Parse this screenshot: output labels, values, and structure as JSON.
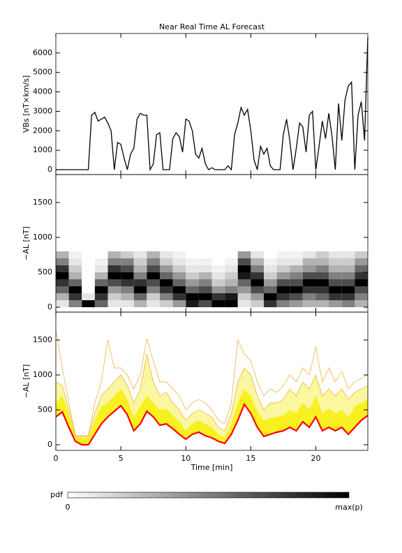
{
  "chart_data": [
    {
      "type": "line",
      "title": "Near Real Time AL Forecast",
      "ylabel": "VBs [nT×km/s]",
      "color": "#000000",
      "xlim": [
        0,
        24
      ],
      "xticks": [
        0,
        5,
        10,
        15,
        20
      ],
      "ylim": [
        -250,
        7000
      ],
      "yticks": [
        0,
        1000,
        2000,
        3000,
        4000,
        5000,
        6000
      ],
      "x": [
        0,
        0.25,
        0.5,
        0.75,
        1,
        1.25,
        1.5,
        1.75,
        2,
        2.25,
        2.5,
        2.75,
        3,
        3.25,
        3.5,
        3.75,
        4,
        4.25,
        4.5,
        4.75,
        5,
        5.25,
        5.5,
        5.75,
        6,
        6.25,
        6.5,
        6.75,
        7,
        7.25,
        7.5,
        7.75,
        8,
        8.25,
        8.5,
        8.75,
        9,
        9.25,
        9.5,
        9.75,
        10,
        10.25,
        10.5,
        10.75,
        11,
        11.25,
        11.5,
        11.75,
        12,
        12.25,
        12.5,
        12.75,
        13,
        13.25,
        13.5,
        13.75,
        14,
        14.25,
        14.5,
        14.75,
        15,
        15.25,
        15.5,
        15.75,
        16,
        16.25,
        16.5,
        16.75,
        17,
        17.25,
        17.5,
        17.75,
        18,
        18.25,
        18.5,
        18.75,
        19,
        19.25,
        19.5,
        19.75,
        20,
        20.25,
        20.5,
        20.75,
        21,
        21.25,
        21.5,
        21.75,
        22,
        22.25,
        22.5,
        22.75,
        23,
        23.25,
        23.5,
        23.75,
        24
      ],
      "values": [
        0,
        0,
        0,
        0,
        0,
        0,
        0,
        0,
        0,
        0,
        0,
        2800,
        2950,
        2500,
        2600,
        2700,
        2400,
        2000,
        0,
        1400,
        1300,
        600,
        0,
        800,
        1100,
        2600,
        2900,
        2800,
        2800,
        0,
        300,
        1800,
        1900,
        0,
        0,
        0,
        1600,
        1900,
        1700,
        900,
        2600,
        2500,
        2000,
        800,
        600,
        1100,
        300,
        0,
        100,
        0,
        0,
        0,
        0,
        200,
        0,
        1800,
        2400,
        3200,
        2800,
        3100,
        2000,
        500,
        0,
        1200,
        800,
        1100,
        200,
        0,
        0,
        0,
        1800,
        2600,
        1500,
        0,
        1100,
        2400,
        2200,
        900,
        2800,
        3000,
        0,
        1200,
        2500,
        1600,
        2900,
        1700,
        0,
        3400,
        1500,
        3600,
        4300,
        4500,
        0,
        2800,
        3500,
        1500,
        6800
      ]
    },
    {
      "type": "heatmap",
      "ylabel": "−AL [nT]",
      "xlim": [
        0,
        24
      ],
      "xticks": [
        0,
        5,
        10,
        15,
        20
      ],
      "ylim": [
        -70,
        1900
      ],
      "yticks": [
        0,
        500,
        1000,
        1500
      ],
      "xbins": [
        0,
        1,
        2,
        3,
        4,
        5,
        6,
        7,
        8,
        9,
        10,
        11,
        12,
        13,
        14,
        15,
        16,
        17,
        18,
        19,
        20,
        21,
        22,
        23,
        24
      ],
      "ybins": [
        0,
        100,
        200,
        300,
        400,
        500,
        600,
        700,
        800
      ],
      "z": [
        [
          0.1,
          0.3,
          0.6,
          0.8,
          1,
          0.8,
          0.5,
          0.3
        ],
        [
          0.5,
          0.8,
          1,
          0.6,
          0.3,
          0.2,
          0.1,
          0.05
        ],
        [
          1,
          0.1,
          0,
          0,
          0,
          0,
          0,
          0
        ],
        [
          0.6,
          0.8,
          1,
          0.6,
          0.3,
          0.1,
          0.05,
          0
        ],
        [
          0.1,
          0.2,
          0.4,
          0.7,
          1,
          0.8,
          0.5,
          0.3
        ],
        [
          0.1,
          0.3,
          0.5,
          0.8,
          1,
          0.7,
          0.5,
          0.2
        ],
        [
          0.3,
          0.6,
          1,
          0.8,
          0.5,
          0.3,
          0.2,
          0.1
        ],
        [
          0.1,
          0.2,
          0.5,
          0.7,
          1,
          0.7,
          0.5,
          0.3
        ],
        [
          0.2,
          0.5,
          0.8,
          1,
          0.6,
          0.4,
          0.2,
          0.1
        ],
        [
          0.4,
          0.8,
          1,
          0.6,
          0.4,
          0.2,
          0.1,
          0.05
        ],
        [
          0.9,
          1,
          0.6,
          0.4,
          0.2,
          0.1,
          0.05,
          0
        ],
        [
          0.7,
          1,
          0.7,
          0.5,
          0.3,
          0.1,
          0.05,
          0
        ],
        [
          1,
          0.8,
          0.4,
          0.2,
          0.1,
          0.05,
          0,
          0
        ],
        [
          1,
          0.9,
          0.5,
          0.3,
          0.2,
          0.1,
          0.05,
          0
        ],
        [
          0.1,
          0.2,
          0.4,
          0.6,
          0.9,
          1,
          0.7,
          0.4
        ],
        [
          0.2,
          0.4,
          0.7,
          1,
          0.8,
          0.5,
          0.3,
          0.1
        ],
        [
          0.8,
          1,
          0.6,
          0.4,
          0.2,
          0.1,
          0.05,
          0
        ],
        [
          0.5,
          0.8,
          1,
          0.7,
          0.4,
          0.2,
          0.1,
          0.05
        ],
        [
          0.4,
          0.7,
          1,
          0.7,
          0.5,
          0.3,
          0.1,
          0.05
        ],
        [
          0.3,
          0.5,
          0.8,
          1,
          0.7,
          0.4,
          0.3,
          0.1
        ],
        [
          0.3,
          0.6,
          0.8,
          1,
          0.7,
          0.5,
          0.3,
          0.2
        ],
        [
          0.4,
          0.8,
          1,
          0.7,
          0.5,
          0.3,
          0.2,
          0.1
        ],
        [
          0.5,
          0.8,
          1,
          0.7,
          0.5,
          0.3,
          0.2,
          0.1
        ],
        [
          0.3,
          0.5,
          0.7,
          1,
          0.8,
          0.6,
          0.4,
          0.2
        ]
      ]
    },
    {
      "type": "band",
      "ylabel": "−AL [nT]",
      "xlabel": "Time [min]",
      "xtick_labels": true,
      "xlim": [
        0,
        24
      ],
      "xticks": [
        0,
        5,
        10,
        15,
        20
      ],
      "ylim": [
        -80,
        1900
      ],
      "yticks": [
        0,
        500,
        1000,
        1500
      ],
      "x": [
        0,
        0.5,
        1,
        1.5,
        2,
        2.5,
        3,
        3.5,
        4,
        4.5,
        5,
        5.5,
        6,
        6.5,
        7,
        7.5,
        8,
        8.5,
        9,
        9.5,
        10,
        10.5,
        11,
        11.5,
        12,
        12.5,
        13,
        13.5,
        14,
        14.5,
        15,
        15.5,
        16,
        16.5,
        17,
        17.5,
        18,
        18.5,
        19,
        19.5,
        20,
        20.5,
        21,
        21.5,
        22,
        22.5,
        23,
        23.5,
        24
      ],
      "series": [
        {
          "color": "#ff0000",
          "values": [
            400,
            470,
            250,
            50,
            0,
            0,
            150,
            300,
            400,
            480,
            560,
            430,
            200,
            300,
            480,
            400,
            280,
            300,
            230,
            150,
            80,
            150,
            180,
            130,
            100,
            50,
            20,
            150,
            350,
            580,
            450,
            250,
            120,
            150,
            180,
            200,
            250,
            200,
            330,
            250,
            400,
            200,
            250,
            200,
            250,
            150,
            250,
            350,
            420
          ]
        },
        {
          "color": "#f8f020",
          "fill": true,
          "values": [
            600,
            700,
            450,
            100,
            100,
            100,
            350,
            550,
            600,
            700,
            800,
            650,
            400,
            550,
            700,
            600,
            500,
            520,
            420,
            330,
            200,
            300,
            350,
            300,
            250,
            150,
            100,
            300,
            600,
            800,
            700,
            480,
            350,
            380,
            400,
            420,
            500,
            450,
            600,
            500,
            700,
            450,
            520,
            450,
            500,
            400,
            550,
            600,
            650
          ]
        },
        {
          "color": "#fbf6a0",
          "fill": true,
          "values": [
            900,
            850,
            500,
            120,
            120,
            120,
            450,
            700,
            800,
            900,
            1000,
            850,
            600,
            800,
            1300,
            900,
            700,
            750,
            600,
            500,
            350,
            450,
            500,
            450,
            400,
            250,
            200,
            450,
            900,
            1100,
            1000,
            700,
            500,
            600,
            600,
            650,
            800,
            700,
            900,
            800,
            1000,
            700,
            800,
            700,
            800,
            650,
            750,
            800,
            850
          ]
        },
        {
          "color": "#f5a623",
          "values": [
            1650,
            1100,
            600,
            130,
            130,
            130,
            600,
            900,
            1500,
            1100,
            1100,
            1000,
            800,
            1000,
            1520,
            1200,
            900,
            900,
            800,
            700,
            500,
            600,
            650,
            600,
            500,
            350,
            300,
            600,
            1500,
            1300,
            1200,
            900,
            700,
            800,
            750,
            850,
            1000,
            900,
            1100,
            1000,
            1400,
            900,
            1100,
            900,
            1050,
            800,
            900,
            950,
            1000
          ]
        }
      ]
    }
  ],
  "colorbar": {
    "label": "pdf",
    "min_label": "0",
    "max_label": "max(p)"
  }
}
